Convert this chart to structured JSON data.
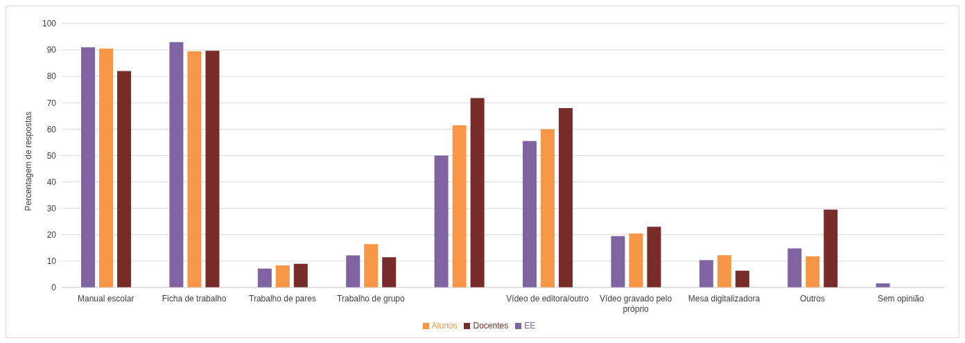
{
  "chart_data": {
    "type": "bar",
    "ylabel": "Percentagem de respostas",
    "categories": [
      "Manual escolar",
      "Ficha de trabalho",
      "Trabalho de pares",
      "Trabalho de grupo",
      null,
      "Vídeo de editora/outro",
      "Vídeo gravado pelo próprio",
      "Mesa digitalizadora",
      "Outros",
      "Sem opinião"
    ],
    "series": [
      {
        "name": "EE",
        "color": "#8064a2",
        "values": [
          91,
          93,
          7.2,
          12.2,
          50,
          55.5,
          19.5,
          10.4,
          14.8,
          1.6
        ]
      },
      {
        "name": "Alunos",
        "color": "#f79646",
        "values": [
          90.5,
          89.5,
          8.4,
          16.5,
          61.5,
          60,
          20.5,
          12.3,
          11.8,
          null
        ]
      },
      {
        "name": "Docentes",
        "color": "#772c2a",
        "values": [
          82,
          89.7,
          9,
          11.5,
          71.8,
          68,
          23,
          6.4,
          29.5,
          null
        ]
      }
    ],
    "ylim": [
      0,
      100
    ],
    "yticks": [
      0,
      10,
      20,
      30,
      40,
      50,
      60,
      70,
      80,
      90,
      100
    ],
    "grid": "y",
    "legend": "bottom"
  }
}
